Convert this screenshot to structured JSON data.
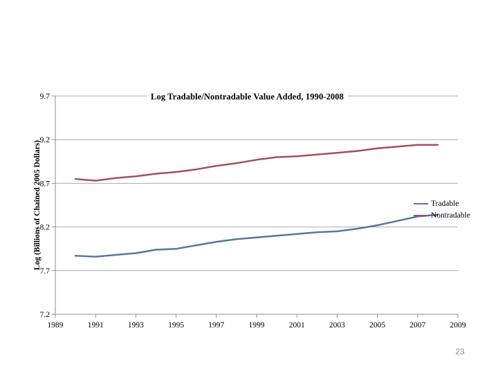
{
  "slide": {
    "page_number": "23"
  },
  "chart_data": {
    "type": "line",
    "title": "Log Tradable/Nontradable Value Added, 1990-2008",
    "xlabel": "",
    "ylabel": "Log (Billions of Chained 2005 Dollars)",
    "x": [
      1990,
      1991,
      1992,
      1993,
      1994,
      1995,
      1996,
      1997,
      1998,
      1999,
      2000,
      2001,
      2002,
      2003,
      2004,
      2005,
      2006,
      2007,
      2008
    ],
    "series": [
      {
        "name": "Tradable",
        "color": "#54789F",
        "values": [
          7.87,
          7.86,
          7.88,
          7.9,
          7.94,
          7.95,
          7.99,
          8.03,
          8.06,
          8.08,
          8.1,
          8.12,
          8.14,
          8.15,
          8.18,
          8.22,
          8.27,
          8.32,
          8.34
        ]
      },
      {
        "name": "Nontradable",
        "color": "#A35155",
        "values": [
          8.75,
          8.73,
          8.76,
          8.78,
          8.81,
          8.83,
          8.86,
          8.9,
          8.93,
          8.97,
          9.0,
          9.01,
          9.03,
          9.05,
          9.07,
          9.1,
          9.12,
          9.14,
          9.14
        ]
      }
    ],
    "xlim": [
      1989,
      2009
    ],
    "ylim": [
      7.2,
      9.7
    ],
    "x_ticks": [
      1989,
      1991,
      1993,
      1995,
      1997,
      1999,
      2001,
      2003,
      2005,
      2007,
      2009
    ],
    "y_ticks": [
      7.2,
      7.7,
      8.2,
      8.7,
      9.2,
      9.7
    ],
    "grid": "horizontal",
    "legend_position": "inside-right",
    "colors": {
      "gridline": "#ACACAC",
      "axis": "#8E8E8E",
      "text": "#000000",
      "page_number": "#8F8F8F"
    }
  }
}
